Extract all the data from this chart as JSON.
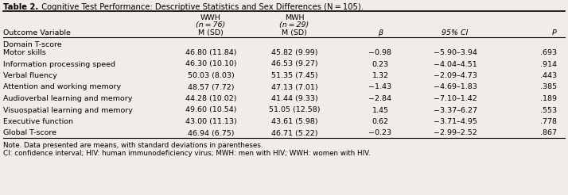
{
  "title_bold": "Table 2.",
  "title_rest": "  Cognitive Test Performance: Descriptive Statistics and Sex Differences (N = 105).",
  "col_headers_wwh": [
    "WWH",
    "(n = 76)",
    "M (SD)"
  ],
  "col_headers_mwh": [
    "MWH",
    "(n = 29)",
    "M (SD)"
  ],
  "col_header_beta": "β",
  "col_header_ci": "95% CI",
  "col_header_p": "P",
  "col_header_outcome": "Outcome Variable",
  "section_label": "Domain T-score",
  "rows": [
    [
      "Motor skills",
      "46.80 (11.84)",
      "45.82 (9.99)",
      "−0.98",
      "−5.90–3.94",
      ".693"
    ],
    [
      "Information processing speed",
      "46.30 (10.10)",
      "46.53 (9.27)",
      "0.23",
      "−4.04–4.51",
      ".914"
    ],
    [
      "Verbal fluency",
      "50.03 (8.03)",
      "51.35 (7.45)",
      "1.32",
      "−2.09–4.73",
      ".443"
    ],
    [
      "Attention and working memory",
      "48.57 (7.72)",
      "47.13 (7.01)",
      "−1.43",
      "−4.69–1.83",
      ".385"
    ],
    [
      "Audioverbal learning and memory",
      "44.28 (10.02)",
      "41.44 (9.33)",
      "−2.84",
      "−7.10–1.42",
      ".189"
    ],
    [
      "Visuospatial learning and memory",
      "49.60 (10.54)",
      "51.05 (12.58)",
      "1.45",
      "−3.37–6.27",
      ".553"
    ],
    [
      "Executive function",
      "43.00 (11.13)",
      "43.61 (5.98)",
      "0.62",
      "−3.71–4.95",
      ".778"
    ],
    [
      "Global T-score",
      "46.94 (6.75)",
      "46.71 (5.22)",
      "−0.23",
      "−2.99–2.52",
      ".867"
    ]
  ],
  "note_line1": "Note. Data presented are means, with standard deviations in parentheses.",
  "note_line2": "CI: confidence interval; HIV: human immunodeficiency virus; MWH: men with HIV; WWH: women with HIV.",
  "bg_color": "#f0ede8",
  "font_size": 6.8,
  "note_font_size": 6.3
}
